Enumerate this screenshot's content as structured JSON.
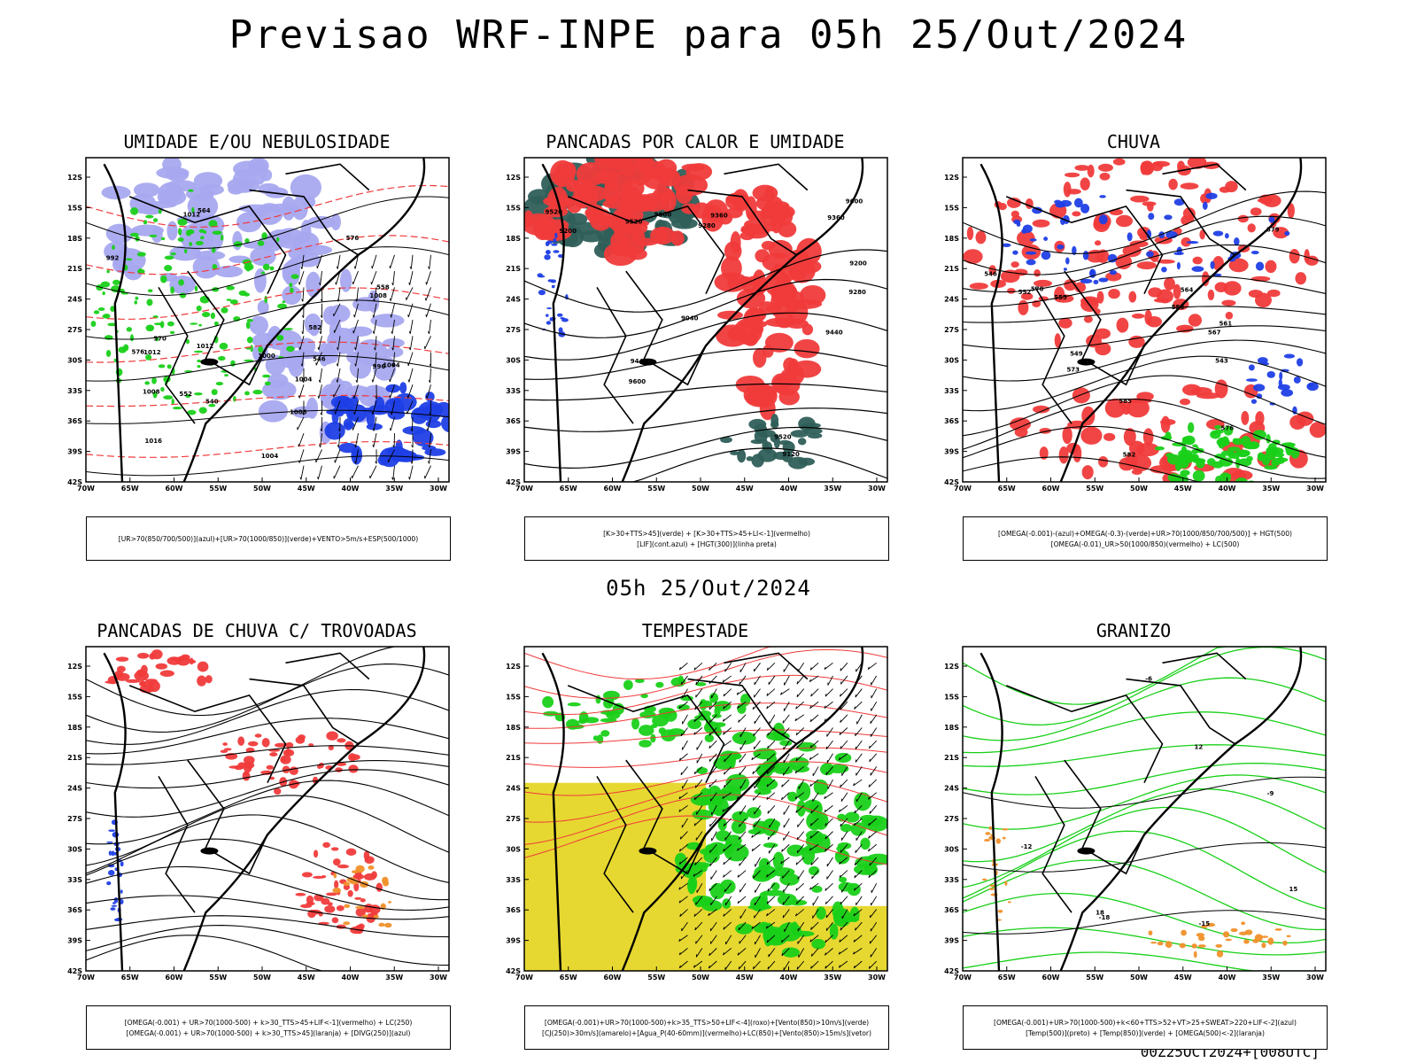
{
  "main_title": "Previsao WRF-INPE  para 05h 25/Out/2024",
  "mid_title": "05h 25/Out/2024",
  "footer": "00Z25OCT2024+[008UTC]",
  "axes": {
    "lat_ticks": [
      "12S",
      "15S",
      "18S",
      "21S",
      "24S",
      "27S",
      "30S",
      "33S",
      "36S",
      "39S",
      "42S"
    ],
    "lon_ticks": [
      "70W",
      "65W",
      "60W",
      "55W",
      "50W",
      "45W",
      "40W",
      "35W",
      "30W"
    ]
  },
  "colors": {
    "blue": "#1f3fe6",
    "lightblue": "#a8a8f0",
    "red": "#f03b3b",
    "green": "#19d019",
    "darkgreen": "#2f5f5a",
    "yellow": "#e6d830",
    "orange": "#f0902a",
    "black": "#000000"
  },
  "panels": [
    {
      "id": "p1",
      "title": "UMIDADE E/OU NEBULOSIDADE",
      "legend": [
        "[UR>70(850/700/500)](azul)+[UR>70(1000/850)](verde)+VENTO>5m/s+ESP(500/1000)"
      ],
      "contour_labels": [
        "1008",
        "1012",
        "1008",
        "1004",
        "1000",
        "1004",
        "996",
        "992",
        "1012",
        "1012",
        "1008",
        "1004",
        "1016",
        "576",
        "582",
        "570",
        "576",
        "564",
        "552",
        "546",
        "540",
        "558"
      ]
    },
    {
      "id": "p2",
      "title": "PANCADAS POR CALOR E UMIDADE",
      "legend": [
        "[K>30+TTS>45](verde) + [K>30+TTS>45+LI<-1](vermelho)",
        "[LIF](cont.azul) + [HGT(300)](linha preta)"
      ],
      "contour_labels": [
        "9600",
        "9520",
        "9440",
        "9360",
        "9280",
        "9200",
        "9120",
        "9040",
        "9520",
        "9440",
        "9280",
        "9200",
        "9360",
        "9600",
        "9600",
        "9520"
      ]
    },
    {
      "id": "p3",
      "title": "CHUVA",
      "legend": [
        "[OMEGA(-0.001)-(azul)+OMEGA(-0.3)-(verde)+UR>70(1000/850/700/500)] + HGT(500)",
        "[OMEGA(-0.01)_UR>50(1000/850)(vermelho) + LC(500)"
      ],
      "contour_labels": [
        "585",
        "582",
        "579",
        "576",
        "573",
        "570",
        "567",
        "564",
        "561",
        "558",
        "555",
        "552",
        "549",
        "546",
        "543"
      ]
    },
    {
      "id": "p4",
      "title": "PANCADAS DE CHUVA C/ TROVOADAS",
      "legend": [
        "[OMEGA(-0.001) + UR>70(1000-500) + k>30_TTS>45+LIF<-1](vermelho) + LC(250)",
        "[OMEGA(-0.001) + UR>70(1000-500) + k>30_TTS>45](laranja) + [DIVG(250)](azul)"
      ]
    },
    {
      "id": "p5",
      "title": "TEMPESTADE",
      "legend": [
        "[OMEGA(-0.001)+UR>70(1000-500)+k>35_TTS>50+LIF<-4](roxo)+[Vento(850)>10m/s](verde)",
        "[CJ(250)>30m/s](amarelo)+[Agua_P(40-60mm)](vermelho)+LC(850)+[Vento(850)>15m/s](vetor)"
      ]
    },
    {
      "id": "p6",
      "title": "GRANIZO",
      "legend": [
        "[OMEGA(-0.001)+UR>70(1000-500)+k<60+TTS>52+VT>25+SWEAT>220+LIF<-2](azul)",
        "[Temp(500)](preto) + [Temp(850)](verde) + [OMEGA(500)<-2](laranja)"
      ],
      "contour_labels": [
        "-12",
        "-15",
        "-18",
        "12",
        "15",
        "18",
        "-9",
        "-6"
      ]
    }
  ]
}
